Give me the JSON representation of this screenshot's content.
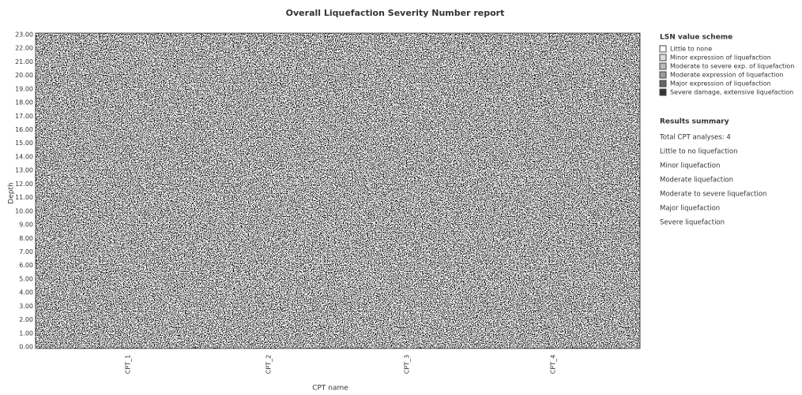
{
  "header": {
    "title": "Overall Liquefaction Severity Number report"
  },
  "y_axis": {
    "label": "Depth",
    "ticks": [
      "23.00",
      "22.00",
      "21.00",
      "20.00",
      "19.00",
      "18.00",
      "17.00",
      "16.00",
      "15.00",
      "14.00",
      "13.00",
      "12.00",
      "11.00",
      "10.00",
      "9.00",
      "8.00",
      "7.00",
      "6.00",
      "5.00",
      "4.00",
      "3.00",
      "2.00",
      "1.00",
      "0.00"
    ]
  },
  "x_axis": {
    "label": "CPT name",
    "ticks": [
      "CPT_1",
      "CPT_2",
      "CPT_3",
      "CPT_4"
    ]
  },
  "legend": {
    "title": "LSN value scheme",
    "items": [
      "Little to none",
      "Minor expression of liquefaction",
      "Moderate to severe exp. of liquefaction",
      "Moderate expression of liquefaction",
      "Major expression of liquefaction",
      "Severe damage, extensive liquefaction"
    ]
  },
  "summary": {
    "title": "Results summary",
    "items": [
      "Total CPT analyses: 4",
      "Little to no liquefaction",
      "Minor liquefaction",
      "Moderate liquefaction",
      "Moderate to severe liquefaction",
      "Major liquefaction",
      "Severe liquefaction"
    ]
  }
}
